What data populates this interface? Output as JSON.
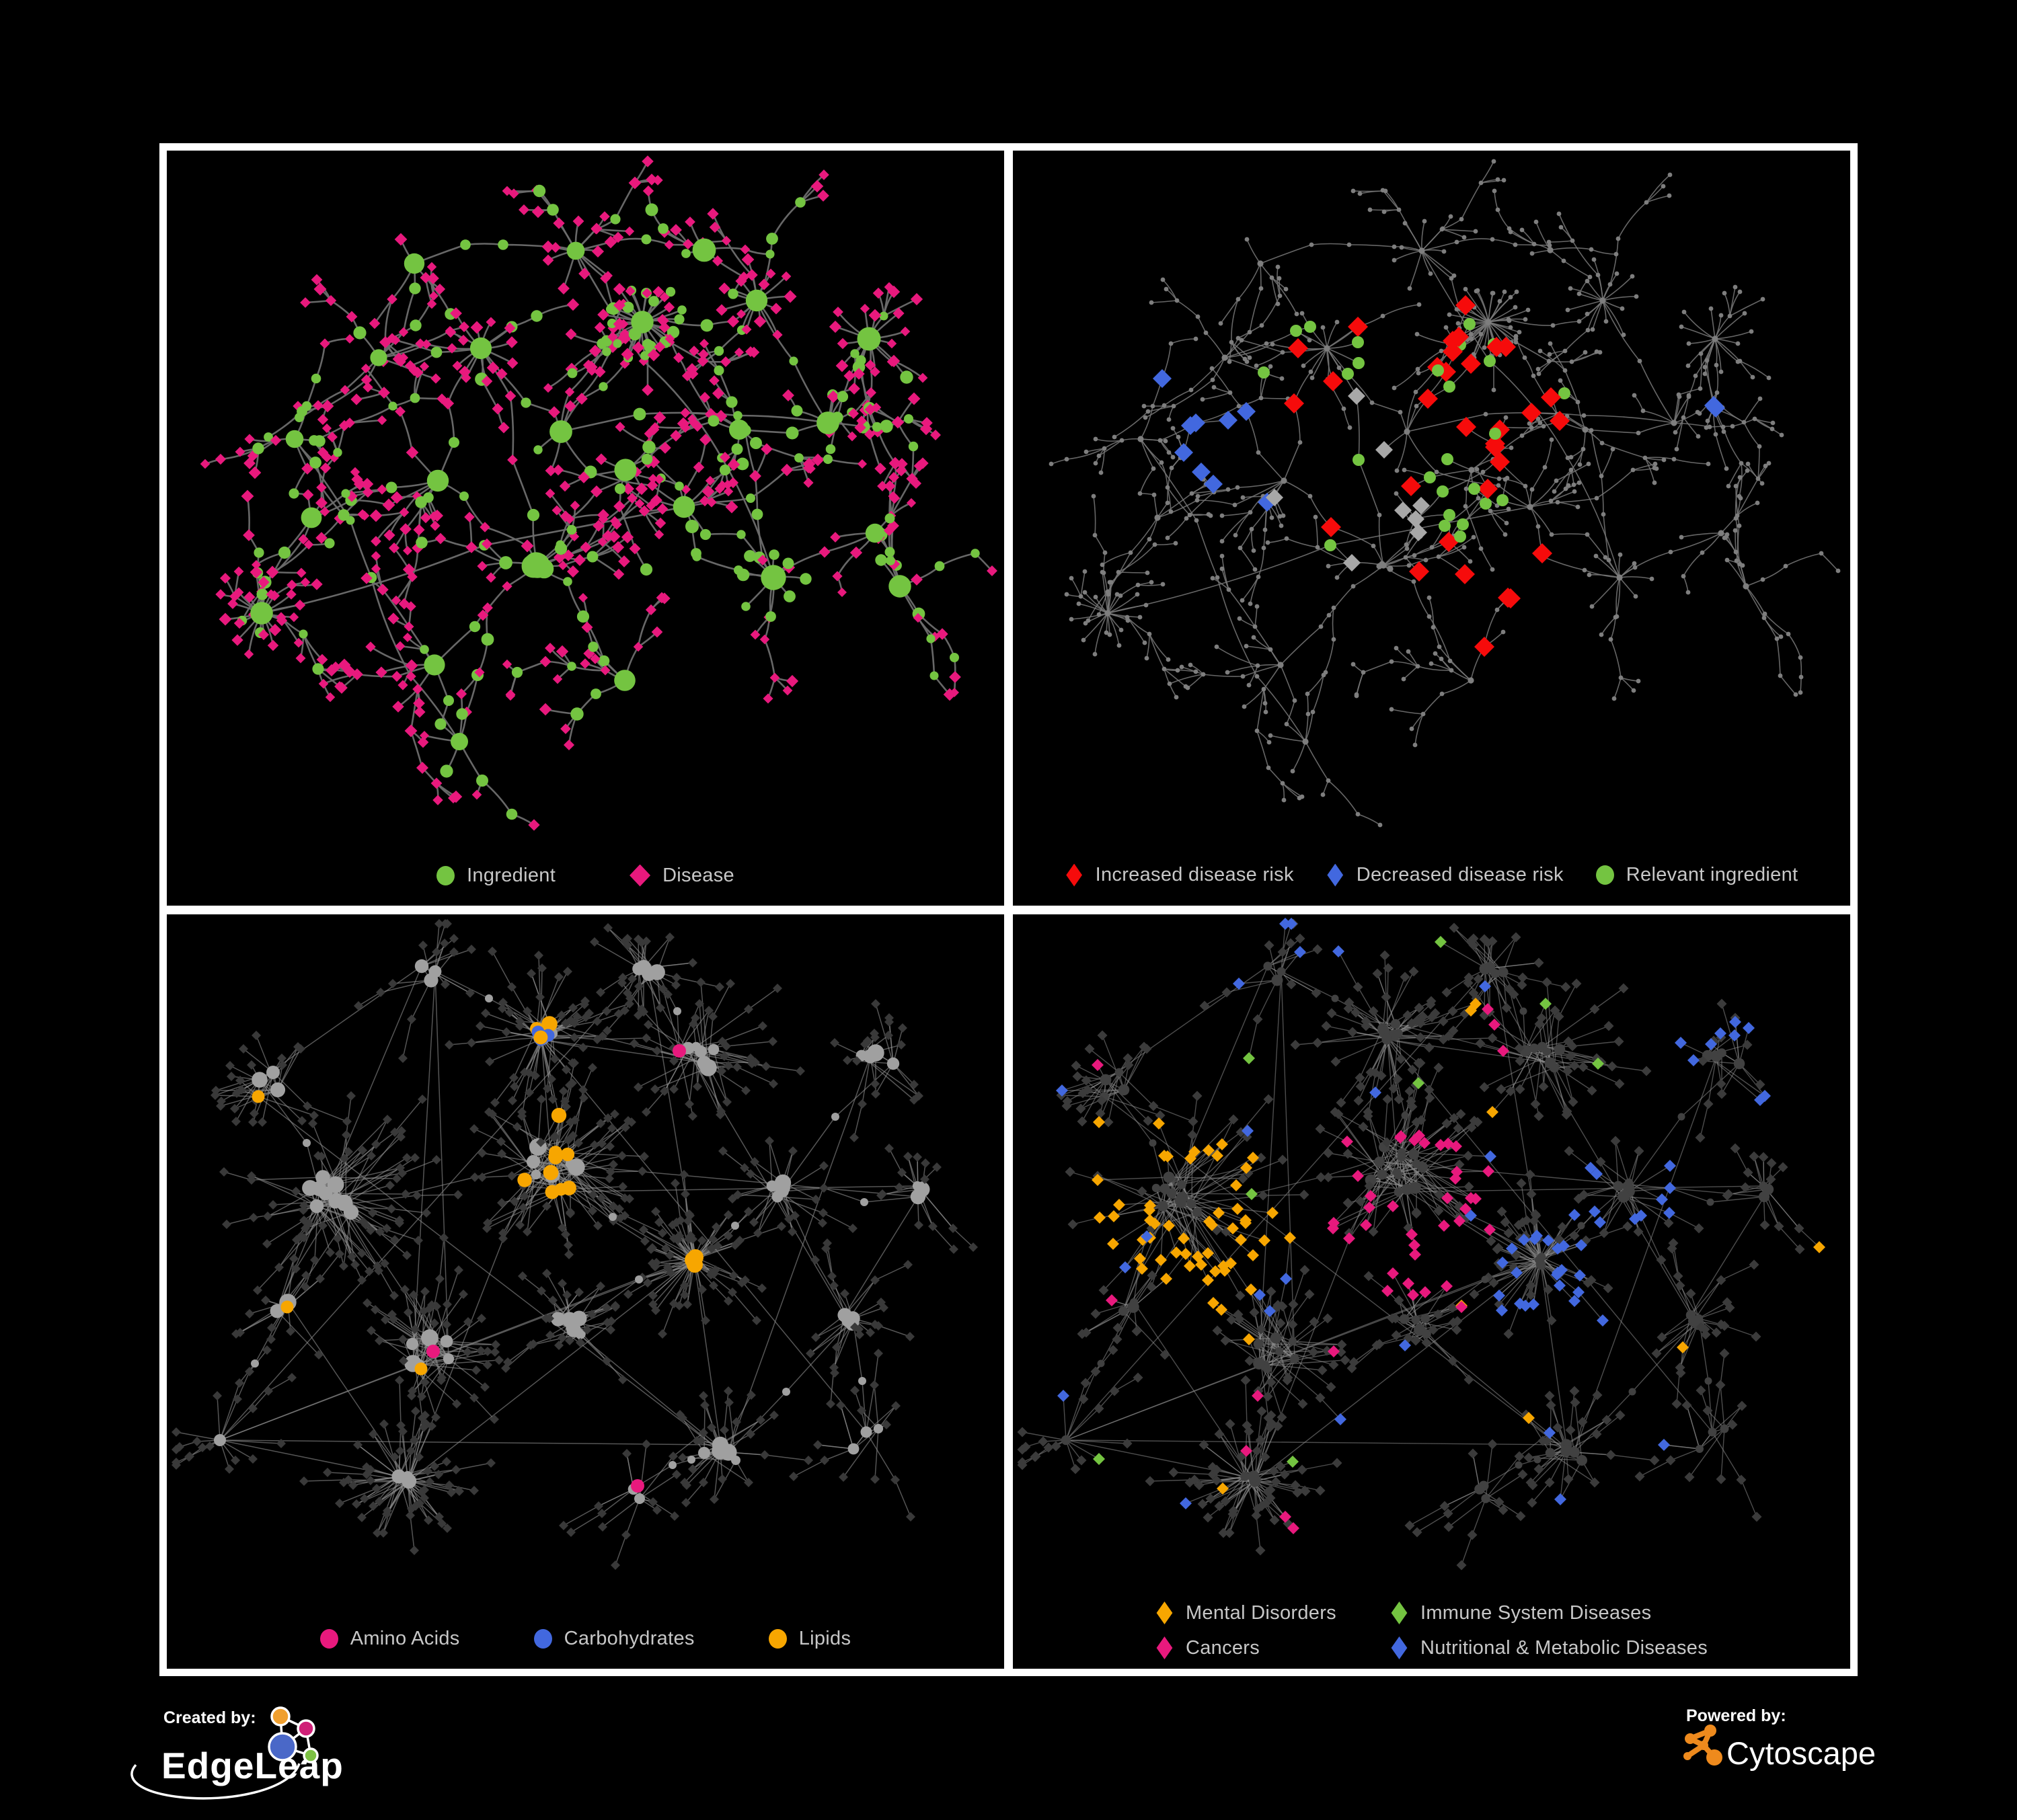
{
  "canvas": {
    "background": "#000000",
    "frame_color": "#ffffff"
  },
  "palette": {
    "ingredient_green": "#74c441",
    "disease_pink": "#e8197d",
    "risk_red": "#f60b0b",
    "risk_blue": "#4268df",
    "lipid_amber": "#f7a600",
    "silver_gray": "#a8a8a8",
    "edge_gray": "#6d6d6d",
    "legend_text": "#c7c7c7"
  },
  "panels": [
    {
      "name": "ingredient-disease-network",
      "legend": [
        {
          "label": "Ingredient",
          "shape": "circle",
          "color": "#74c441"
        },
        {
          "label": "Disease",
          "shape": "diamond",
          "color": "#e8197d"
        }
      ]
    },
    {
      "name": "disease-risk-network",
      "legend": [
        {
          "label": "Increased disease risk",
          "shape": "diamond",
          "color": "#f60b0b"
        },
        {
          "label": "Decreased disease risk",
          "shape": "diamond",
          "color": "#4268df"
        },
        {
          "label": "Relevant ingredient",
          "shape": "circle",
          "color": "#74c441"
        }
      ]
    },
    {
      "name": "nutrient-class-network",
      "legend": [
        {
          "label": "Amino Acids",
          "shape": "circle",
          "color": "#e8197d"
        },
        {
          "label": "Carbohydrates",
          "shape": "circle",
          "color": "#4268df"
        },
        {
          "label": "Lipids",
          "shape": "circle",
          "color": "#f7a600"
        }
      ]
    },
    {
      "name": "disease-class-network",
      "legend": [
        {
          "label": "Mental Disorders",
          "shape": "diamond",
          "color": "#f7a600"
        },
        {
          "label": "Immune System Diseases",
          "shape": "diamond",
          "color": "#74c441"
        },
        {
          "label": "Cancers",
          "shape": "diamond",
          "color": "#e8197d"
        },
        {
          "label": "Nutritional & Metabolic Diseases",
          "shape": "diamond",
          "color": "#4268df"
        }
      ]
    }
  ],
  "footer": {
    "created_by": {
      "label": "Created by:",
      "brand": "EdgeLeap"
    },
    "powered_by": {
      "label": "Powered by:",
      "brand": "Cytoscape"
    }
  },
  "chart_data": [
    {
      "type": "network",
      "panel": "top-left",
      "description": "Ingredient-disease association network; dendritic tree layout with hub starbursts",
      "node_classes": [
        {
          "label": "Ingredient",
          "shape": "circle",
          "color": "#74c441",
          "approx_count": 250
        },
        {
          "label": "Disease",
          "shape": "diamond",
          "color": "#e8197d",
          "approx_count": 430
        }
      ],
      "edge_color": "#6d6d6d",
      "background": "#000000"
    },
    {
      "type": "network",
      "panel": "top-right",
      "description": "Same topology re-colored: small gray nodes with disease-risk highlights",
      "node_classes": [
        {
          "label": "Increased disease risk",
          "shape": "diamond",
          "color": "#f60b0b",
          "approx_count": 32
        },
        {
          "label": "Decreased disease risk",
          "shape": "diamond",
          "color": "#4268df",
          "approx_count": 11
        },
        {
          "label": "Relevant ingredient",
          "shape": "circle",
          "color": "#74c441",
          "approx_count": 26
        },
        {
          "label": "Highlighted (unlabeled)",
          "shape": "diamond",
          "color": "#a8a8a8",
          "approx_count": 8
        },
        {
          "label": "Other node",
          "shape": "circle",
          "color": "#7e7e7e",
          "approx_count": 620
        }
      ],
      "edge_color": "#787878",
      "background": "#000000"
    },
    {
      "type": "network",
      "panel": "bottom-left",
      "description": "Clustered hairball network; ingredient circles colored by nutrient class, diseases as dark diamonds",
      "node_classes": [
        {
          "label": "Amino Acids",
          "shape": "circle",
          "color": "#e8197d",
          "approx_count": 16
        },
        {
          "label": "Carbohydrates",
          "shape": "circle",
          "color": "#4268df",
          "approx_count": 14
        },
        {
          "label": "Lipids",
          "shape": "circle",
          "color": "#f7a600",
          "approx_count": 62
        },
        {
          "label": "Other ingredient",
          "shape": "circle",
          "color": "#a0a0a0",
          "approx_count": 170
        },
        {
          "label": "Disease",
          "shape": "diamond",
          "color": "#393939",
          "approx_count": 480
        }
      ],
      "edge_color": "#8d8d8d",
      "background": "#000000"
    },
    {
      "type": "network",
      "panel": "bottom-right",
      "description": "Same clustered topology; disease diamonds colored by disease class",
      "node_classes": [
        {
          "label": "Mental Disorders",
          "shape": "diamond",
          "color": "#f7a600",
          "approx_count": 95
        },
        {
          "label": "Immune System Diseases",
          "shape": "diamond",
          "color": "#74c441",
          "approx_count": 10
        },
        {
          "label": "Cancers",
          "shape": "diamond",
          "color": "#e8197d",
          "approx_count": 70
        },
        {
          "label": "Nutritional & Metabolic Diseases",
          "shape": "diamond",
          "color": "#4268df",
          "approx_count": 85
        },
        {
          "label": "Other disease",
          "shape": "diamond",
          "color": "#3b3b3b",
          "approx_count": 320
        },
        {
          "label": "Ingredient",
          "shape": "circle",
          "color": "#414141",
          "approx_count": 170
        }
      ],
      "edge_color": "#8d8d8d",
      "background": "#000000"
    }
  ]
}
